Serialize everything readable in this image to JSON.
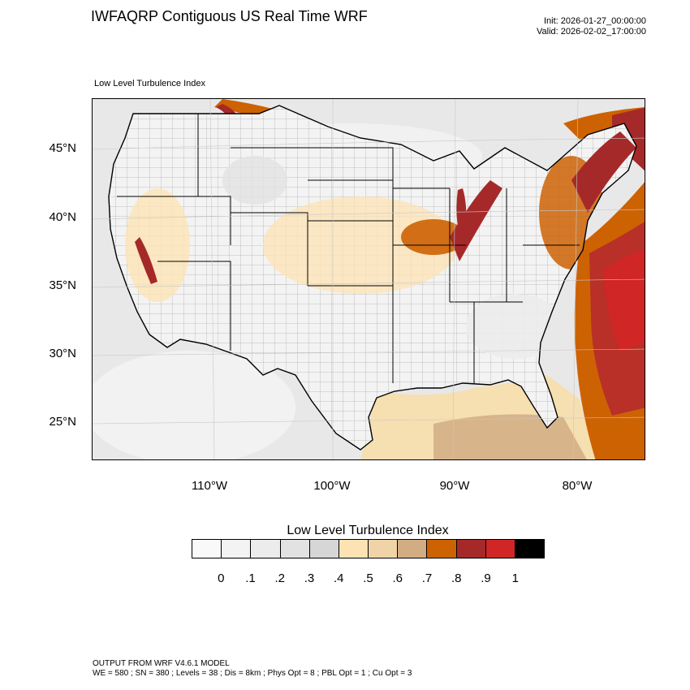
{
  "title": "IWFAQRP Contiguous US Real Time WRF",
  "init": "Init: 2026-01-27_00:00:00",
  "valid": "Valid: 2026-02-02_17:00:00",
  "subtitle": "Low Level Turbulence Index",
  "axes": {
    "lat_labels": [
      "45°N",
      "40°N",
      "35°N",
      "30°N",
      "25°N"
    ],
    "lon_labels": [
      "110°W",
      "100°W",
      "90°W",
      "80°W"
    ]
  },
  "colorbar": {
    "title": "Low Level Turbulence Index",
    "labels": [
      "0",
      ".1",
      ".2",
      ".3",
      ".4",
      ".5",
      ".6",
      ".7",
      ".8",
      ".9",
      "1"
    ],
    "colors": [
      "#f9f9f9",
      "#f3f3f3",
      "#ececec",
      "#e2e2e2",
      "#d6d6d6",
      "#fde3b4",
      "#f0d4a7",
      "#d2ad83",
      "#cd6203",
      "#a6292a",
      "#d12626",
      "#000000"
    ]
  },
  "footer": {
    "line1": "OUTPUT FROM WRF V4.6.1 MODEL",
    "line2": "WE = 580 ; SN = 380 ; Levels = 38 ; Dis = 8km ; Phys Opt = 8 ; PBL Opt = 1 ; Cu Opt = 3"
  }
}
